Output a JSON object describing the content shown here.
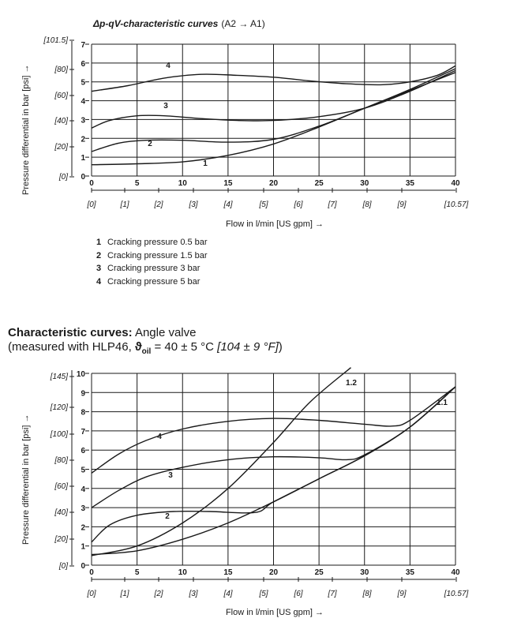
{
  "chart1_title_main": "Δp-qV-characteristic curves",
  "chart1_title_paren": "(A2 → A1)",
  "legend": [
    {
      "num": "1",
      "text": "Cracking pressure 0.5 bar"
    },
    {
      "num": "2",
      "text": "Cracking pressure 1.5 bar"
    },
    {
      "num": "3",
      "text": "Cracking pressure 3 bar"
    },
    {
      "num": "4",
      "text": "Cracking pressure 5 bar"
    }
  ],
  "section2": {
    "title_bold": "Characteristic curves:",
    "title_rest": "Angle valve",
    "subtitle_pre": "(measured with HLP46, ",
    "theta": "ϑ",
    "oil_sub": "oil",
    "subtitle_mid": " = 40 ± 5 °C ",
    "subtitle_ital": "[104 ± 9 °F]",
    "subtitle_post": ")"
  },
  "chart_data": [
    {
      "type": "line",
      "title": "Δp-qV-characteristic curves (A2 → A1)",
      "xlabel": "Flow in l/min [US gpm] →",
      "ylabel": "Pressure differential in bar [psi] →",
      "xlim": [
        0,
        40
      ],
      "ylim": [
        0,
        7
      ],
      "x_ticks": [
        "0",
        "5",
        "10",
        "15",
        "20",
        "25",
        "30",
        "35",
        "40"
      ],
      "x_ticks_secondary": [
        "[0]",
        "[1]",
        "[2]",
        "[3]",
        "[4]",
        "[5]",
        "[6]",
        "[7]",
        "[8]",
        "[9]",
        "[10.57]"
      ],
      "y_ticks": [
        "0",
        "1",
        "2",
        "3",
        "4",
        "5",
        "6",
        "7"
      ],
      "y_ticks_secondary": [
        "[0]",
        "[20]",
        "[40]",
        "[60]",
        "[80]",
        "[101.5]"
      ],
      "series": [
        {
          "name": "1",
          "x": [
            0,
            5,
            10,
            15,
            20,
            25,
            30,
            35,
            40
          ],
          "y": [
            0.6,
            0.65,
            0.75,
            1.1,
            1.7,
            2.6,
            3.6,
            4.6,
            5.7
          ]
        },
        {
          "name": "2",
          "x": [
            0,
            3,
            6,
            10,
            15,
            20,
            25,
            30,
            35,
            40
          ],
          "y": [
            1.3,
            1.75,
            1.9,
            1.9,
            1.8,
            1.95,
            2.65,
            3.6,
            4.55,
            5.5
          ]
        },
        {
          "name": "3",
          "x": [
            0,
            2,
            5,
            8,
            12,
            16,
            20,
            25,
            30,
            35,
            40
          ],
          "y": [
            2.55,
            2.95,
            3.2,
            3.2,
            3.05,
            2.95,
            2.95,
            3.15,
            3.6,
            4.5,
            5.6
          ]
        },
        {
          "name": "4",
          "x": [
            0,
            4,
            8,
            12,
            16,
            20,
            24,
            28,
            32,
            35,
            38,
            40
          ],
          "y": [
            4.5,
            4.8,
            5.2,
            5.4,
            5.35,
            5.25,
            5.05,
            4.9,
            4.85,
            5.0,
            5.35,
            5.85
          ]
        }
      ]
    },
    {
      "type": "line",
      "title": "Characteristic curves: Angle valve",
      "xlabel": "Flow in l/min [US gpm] →",
      "ylabel": "Pressure differential in bar [psi] →",
      "xlim": [
        0,
        40
      ],
      "ylim": [
        0,
        10
      ],
      "x_ticks": [
        "0",
        "5",
        "10",
        "15",
        "20",
        "25",
        "30",
        "35",
        "40"
      ],
      "x_ticks_secondary": [
        "[0]",
        "[1]",
        "[2]",
        "[3]",
        "[4]",
        "[5]",
        "[6]",
        "[7]",
        "[8]",
        "[9]",
        "[10.57]"
      ],
      "y_ticks": [
        "0",
        "1",
        "2",
        "3",
        "4",
        "5",
        "6",
        "7",
        "8",
        "9",
        "10"
      ],
      "y_ticks_secondary": [
        "[0]",
        "[20]",
        "[40]",
        "[60]",
        "[80]",
        "[100]",
        "[120]",
        "[145]"
      ],
      "series": [
        {
          "name": "1.1",
          "x": [
            0,
            5,
            10,
            15,
            20,
            25,
            30,
            35,
            40
          ],
          "y": [
            0.55,
            0.75,
            1.35,
            2.2,
            3.3,
            4.5,
            5.7,
            7.2,
            9.3
          ]
        },
        {
          "name": "1.2",
          "x": [
            0,
            5,
            10,
            15,
            20,
            24,
            28.5
          ],
          "y": [
            0.5,
            1.0,
            2.2,
            4.0,
            6.4,
            8.5,
            10.3
          ]
        },
        {
          "name": "2",
          "x": [
            0,
            2,
            5,
            9,
            13,
            18,
            20,
            25,
            30,
            35,
            40
          ],
          "y": [
            1.2,
            2.1,
            2.6,
            2.8,
            2.8,
            2.75,
            3.3,
            4.5,
            5.7,
            7.2,
            9.3
          ]
        },
        {
          "name": "3",
          "x": [
            0,
            3,
            6,
            10,
            15,
            20,
            25,
            28,
            30,
            35,
            40
          ],
          "y": [
            3.0,
            3.9,
            4.6,
            5.1,
            5.5,
            5.65,
            5.6,
            5.5,
            5.75,
            7.2,
            9.3
          ]
        },
        {
          "name": "4",
          "x": [
            0,
            3,
            6,
            10,
            15,
            20,
            25,
            30,
            33,
            35,
            40
          ],
          "y": [
            4.8,
            5.8,
            6.5,
            7.1,
            7.5,
            7.65,
            7.55,
            7.35,
            7.25,
            7.55,
            9.3
          ]
        }
      ]
    }
  ]
}
